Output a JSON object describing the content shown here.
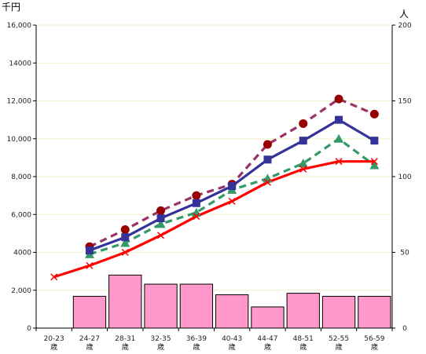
{
  "chart_data": {
    "type": "bar+line",
    "left_axis_unit": "千円",
    "right_axis_unit": "人",
    "categories": [
      {
        "range": "20-23",
        "suffix": "歳"
      },
      {
        "range": "24-27",
        "suffix": "歳"
      },
      {
        "range": "28-31",
        "suffix": "歳"
      },
      {
        "range": "32-35",
        "suffix": "歳"
      },
      {
        "range": "36-39",
        "suffix": "歳"
      },
      {
        "range": "40-43",
        "suffix": "歳"
      },
      {
        "range": "44-47",
        "suffix": "歳"
      },
      {
        "range": "48-51",
        "suffix": "歳"
      },
      {
        "range": "52-55",
        "suffix": "歳"
      },
      {
        "range": "56-59",
        "suffix": "歳"
      }
    ],
    "y_left": {
      "min": 0,
      "max": 16000,
      "ticks": [
        "0",
        "2,000",
        "4000",
        "6,000",
        "8,000",
        "10,000",
        "12,000",
        "14000",
        "16,000"
      ]
    },
    "y_right": {
      "min": 0,
      "max": 200,
      "ticks": [
        "0",
        "50",
        "100",
        "150",
        "200"
      ]
    },
    "bars": {
      "axis": "right",
      "color": "#ff99cc",
      "values": [
        0,
        21,
        35,
        29,
        29,
        22,
        14,
        23,
        21,
        21
      ]
    },
    "series": [
      {
        "style": "solid",
        "color": "#ff0000",
        "marker": "x",
        "axis": "left",
        "values": [
          2700,
          3300,
          4000,
          4900,
          5900,
          6700,
          7700,
          8400,
          8800,
          8800
        ]
      },
      {
        "style": "solid",
        "color": "#333399",
        "marker": "square",
        "axis": "left",
        "values": [
          null,
          4100,
          4800,
          5800,
          6600,
          7500,
          8900,
          9900,
          11000,
          9900
        ]
      },
      {
        "style": "dashed",
        "color": "#339966",
        "marker": "triangle",
        "axis": "left",
        "values": [
          null,
          3900,
          4500,
          5500,
          6100,
          7300,
          7900,
          8700,
          10000,
          8600
        ]
      },
      {
        "style": "dashed",
        "color": "#993366",
        "marker": "circle",
        "markerColor": "#990000",
        "axis": "left",
        "values": [
          null,
          4300,
          5200,
          6200,
          7000,
          7600,
          9700,
          10800,
          12100,
          11300
        ]
      }
    ],
    "grid": "horizontal-light"
  }
}
